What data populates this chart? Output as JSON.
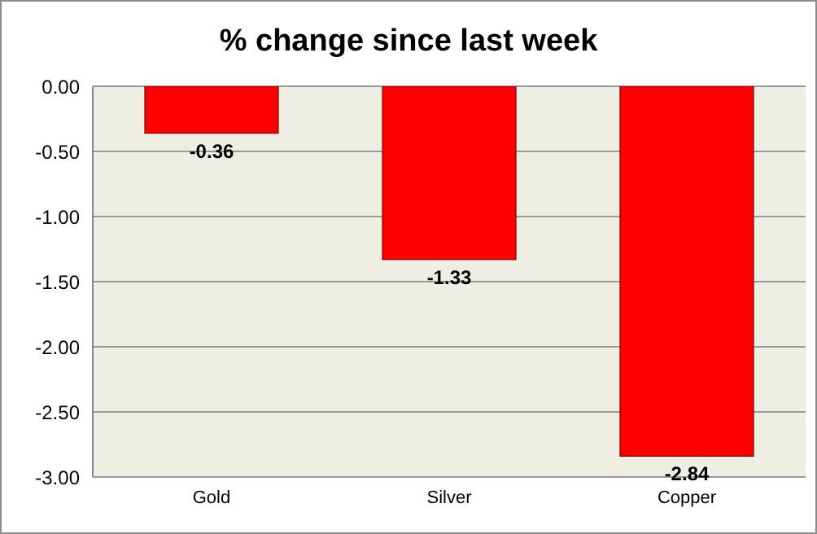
{
  "chart_data": {
    "type": "bar",
    "title": "% change since last week",
    "categories": [
      "Gold",
      "Silver",
      "Copper"
    ],
    "series": [
      {
        "color": "#ff0000",
        "values": [
          -0.36,
          -1.33,
          -2.84
        ]
      }
    ],
    "ylim": [
      -3,
      0
    ],
    "yticks": [
      {
        "value": 0,
        "label": "0.00"
      },
      {
        "value": -0.5,
        "label": "-0.50"
      },
      {
        "value": -1,
        "label": "-1.00"
      },
      {
        "value": -1.5,
        "label": "-1.50"
      },
      {
        "value": -2,
        "label": "-2.00"
      },
      {
        "value": -2.5,
        "label": "-2.50"
      },
      {
        "value": -3,
        "label": "-3.00"
      }
    ],
    "grid": "y",
    "legend": false,
    "data_labels": true
  }
}
